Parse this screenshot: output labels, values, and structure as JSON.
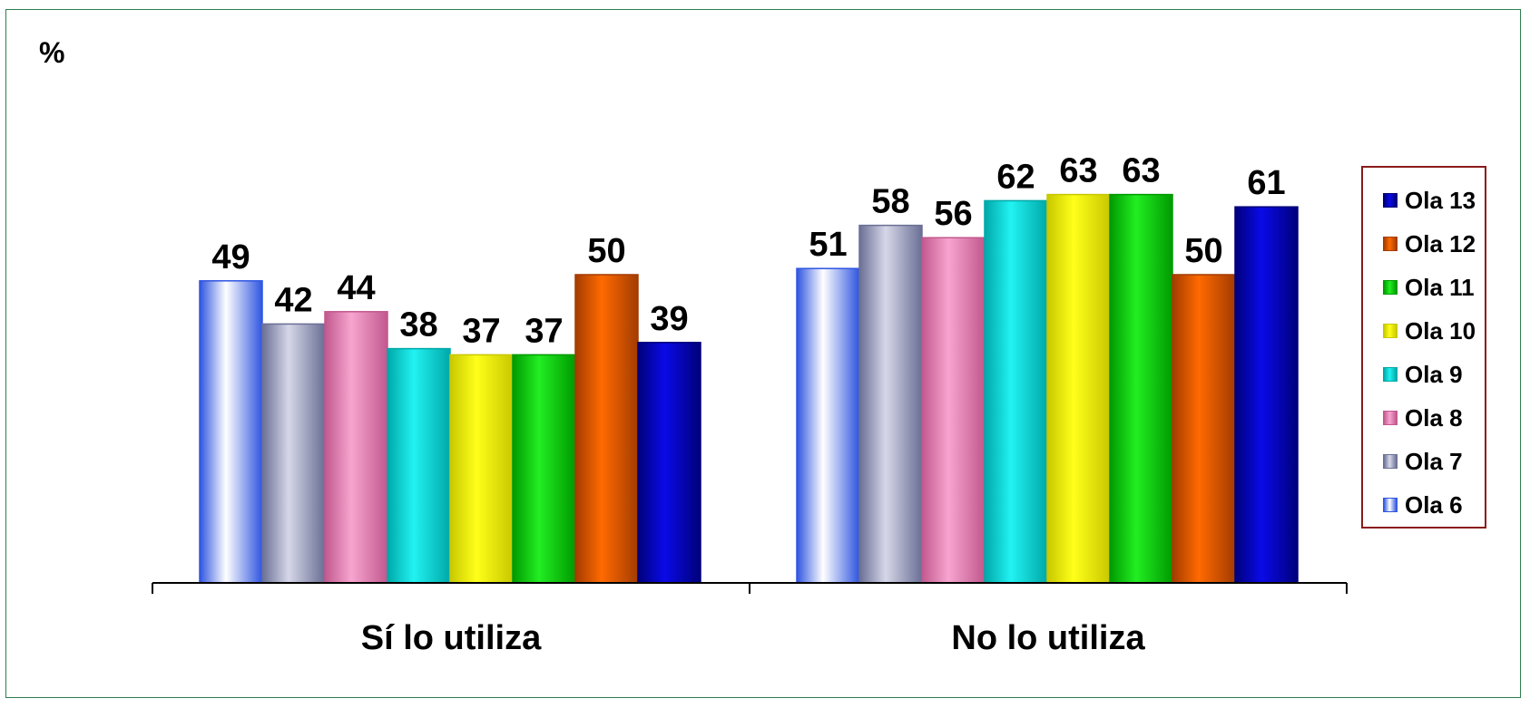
{
  "unit_label": "%",
  "chart_data": {
    "type": "bar",
    "title": "",
    "xlabel": "",
    "ylabel": "%",
    "ylim": [
      0,
      80
    ],
    "categories": [
      "Sí lo utiliza",
      "No lo utiliza"
    ],
    "series": [
      {
        "name": "Ola 6",
        "values": [
          49,
          51
        ],
        "color": "#2f55e0",
        "light": "#ffffff"
      },
      {
        "name": "Ola 7",
        "values": [
          42,
          58
        ],
        "color": "#6a6f95",
        "light": "#d6d7e8"
      },
      {
        "name": "Ola 8",
        "values": [
          44,
          56
        ],
        "color": "#c2588e",
        "light": "#f7a5cf"
      },
      {
        "name": "Ola 9",
        "values": [
          38,
          62
        ],
        "color": "#00a8a8",
        "light": "#22f2f2"
      },
      {
        "name": "Ola 10",
        "values": [
          37,
          63
        ],
        "color": "#c8c800",
        "light": "#ffff1a"
      },
      {
        "name": "Ola 11",
        "values": [
          37,
          63
        ],
        "color": "#009a00",
        "light": "#22ee22"
      },
      {
        "name": "Ola 12",
        "values": [
          50,
          50
        ],
        "color": "#a33c00",
        "light": "#ff6a00"
      },
      {
        "name": "Ola 13",
        "values": [
          39,
          61
        ],
        "color": "#00007a",
        "light": "#0a0ae8"
      }
    ],
    "legend_position": "right",
    "legend_order": [
      "Ola 13",
      "Ola 12",
      "Ola 11",
      "Ola 10",
      "Ola 9",
      "Ola 8",
      "Ola 7",
      "Ola 6"
    ],
    "grid": false
  }
}
